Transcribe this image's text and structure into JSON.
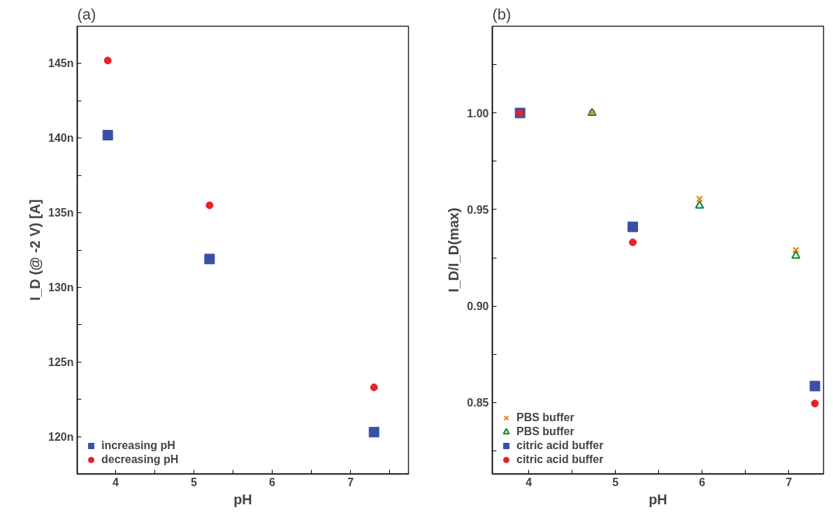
{
  "chart_data": [
    {
      "type": "scatter",
      "title": "(a)",
      "xlabel": "pH",
      "ylabel": "I_D (@ -2 V) [A]",
      "xlim": [
        3.51,
        7.74
      ],
      "ylim": [
        117.5,
        147.5
      ],
      "xticks": [
        4,
        {
          "value": 4.5,
          "label": null
        },
        5,
        {
          "value": 5.5,
          "label": null
        },
        6,
        {
          "value": 6.5,
          "label": null
        },
        7,
        {
          "value": 7.5,
          "label": null
        }
      ],
      "yticks": [
        {
          "value": 120,
          "label": "120n"
        },
        {
          "value": 122.5,
          "label": null
        },
        {
          "value": 125,
          "label": "125n"
        },
        {
          "value": 127.5,
          "label": null
        },
        {
          "value": 130,
          "label": "130n"
        },
        {
          "value": 132.5,
          "label": null
        },
        {
          "value": 135,
          "label": "135n"
        },
        {
          "value": 137.5,
          "label": null
        },
        {
          "value": 140,
          "label": "140n"
        },
        {
          "value": 142.5,
          "label": null
        },
        {
          "value": 145,
          "label": "145n"
        }
      ],
      "grid": false,
      "legend": "bottom left",
      "series": [
        {
          "name": "increasing pH",
          "color": "#3a50a8",
          "marker": "square",
          "x": [
            3.9,
            5.2,
            7.3
          ],
          "values": [
            140.2,
            131.9,
            120.3
          ]
        },
        {
          "name": "decreasing pH",
          "color": "#e8202a",
          "marker": "circle",
          "x": [
            3.9,
            5.2,
            7.3
          ],
          "values": [
            145.2,
            135.5,
            123.3
          ]
        }
      ]
    },
    {
      "type": "scatter",
      "title": "(b)",
      "xlabel": "pH",
      "ylabel": "I_D/I_D(max)",
      "xlim": [
        3.58,
        7.4
      ],
      "ylim": [
        0.813,
        1.045
      ],
      "xticks": [
        4,
        {
          "value": 4.5,
          "label": null
        },
        5,
        {
          "value": 5.5,
          "label": null
        },
        6,
        {
          "value": 6.5,
          "label": null
        },
        7
      ],
      "yticks": [
        {
          "value": 0.825,
          "label": null
        },
        {
          "value": 0.85,
          "label": "0.85"
        },
        {
          "value": 0.875,
          "label": null
        },
        {
          "value": 0.9,
          "label": "0.90"
        },
        {
          "value": 0.925,
          "label": null
        },
        {
          "value": 0.95,
          "label": "0.95"
        },
        {
          "value": 0.975,
          "label": null
        },
        {
          "value": 1.0,
          "label": "1.00"
        },
        {
          "value": 1.025,
          "label": null
        }
      ],
      "grid": false,
      "legend": "bottom left",
      "series": [
        {
          "name": "PBS buffer",
          "color": "#f0821e",
          "marker": "cross",
          "x": [
            4.73,
            5.97,
            7.08
          ],
          "values": [
            1.0,
            0.9555,
            0.929
          ]
        },
        {
          "name": "PBS buffer",
          "color": "#1a8a3a",
          "marker": "triangle",
          "x": [
            4.73,
            5.97,
            7.08
          ],
          "values": [
            1.0,
            0.952,
            0.926
          ]
        },
        {
          "name": "citric acid buffer",
          "color": "#3a50a8",
          "marker": "square",
          "x": [
            3.9,
            5.2,
            7.3
          ],
          "values": [
            1.0,
            0.941,
            0.8585
          ]
        },
        {
          "name": "citric acid buffer",
          "color": "#e8202a",
          "marker": "circle",
          "x": [
            3.9,
            5.2,
            7.3
          ],
          "values": [
            1.0,
            0.933,
            0.8495
          ]
        }
      ]
    }
  ]
}
